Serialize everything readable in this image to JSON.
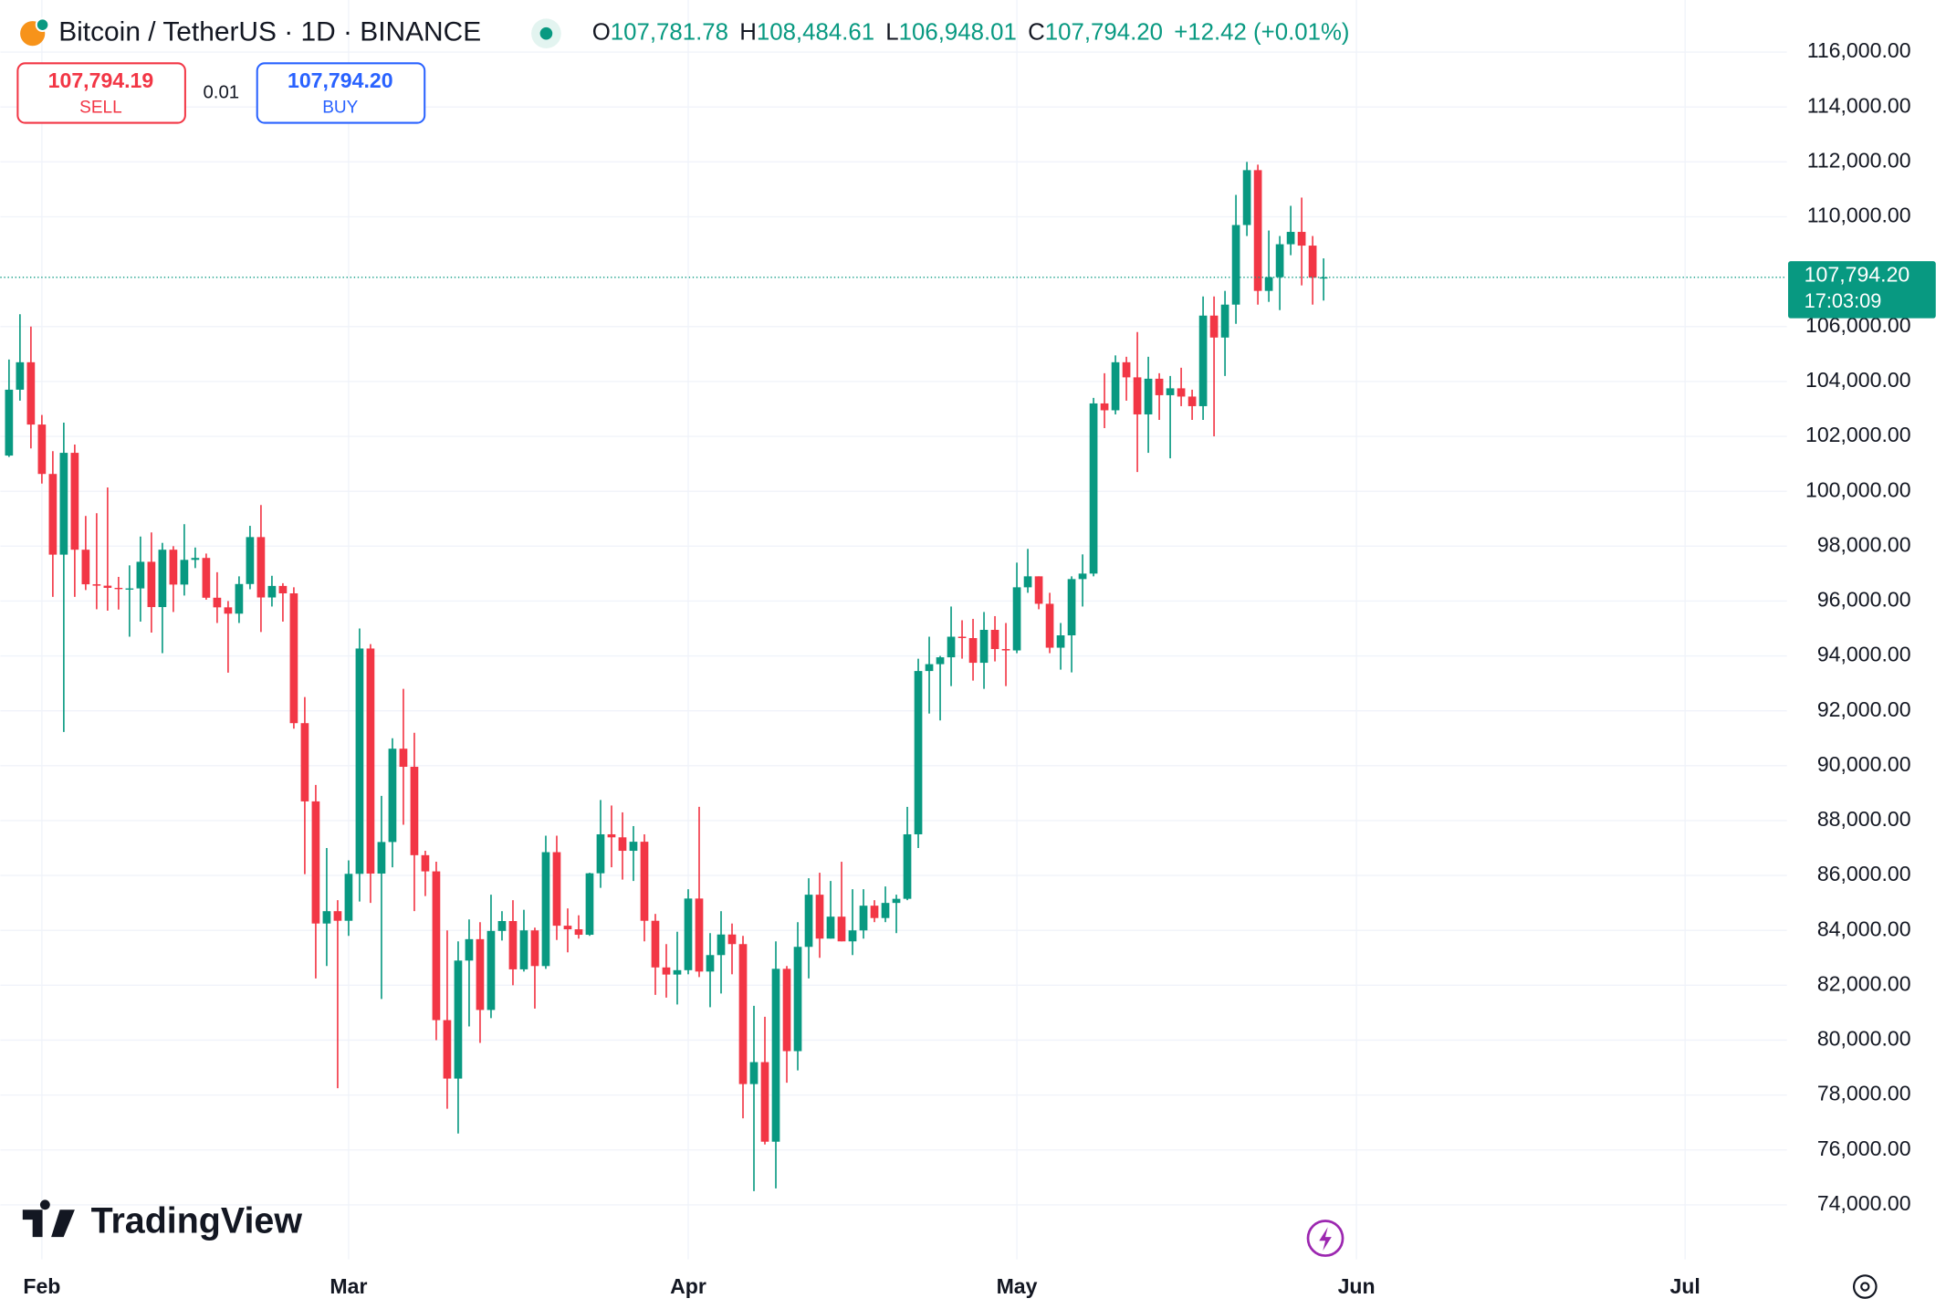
{
  "chart_data": {
    "type": "candlestick",
    "title": "Bitcoin / TetherUS · 1D · BINANCE",
    "ohlc_header": [
      {
        "key": "O",
        "value": "107,781.78"
      },
      {
        "key": "H",
        "value": "108,484.61"
      },
      {
        "key": "L",
        "value": "106,948.01"
      },
      {
        "key": "C",
        "value": "107,794.20"
      }
    ],
    "change": "+12.42 (+0.01%)",
    "sell": {
      "price": "107,794.19",
      "label": "SELL"
    },
    "spread": "0.01",
    "buy": {
      "price": "107,794.20",
      "label": "BUY"
    },
    "last_price_label": "107,794.20",
    "countdown": "17:03:09",
    "watermark": "TradingView",
    "up_color": "#089981",
    "down_color": "#f23645",
    "grid": true,
    "xlim": [
      -0.793,
      162.29
    ],
    "xticks": [
      {
        "value": 3,
        "label": "Feb"
      },
      {
        "value": 31,
        "label": "Mar"
      },
      {
        "value": 62,
        "label": "Apr"
      },
      {
        "value": 92,
        "label": "May"
      },
      {
        "value": 123,
        "label": "Jun"
      },
      {
        "value": 153,
        "label": "Jul"
      }
    ],
    "ylim": [
      72013,
      117899
    ],
    "yticks": [
      {
        "value": 74000,
        "label": "74,000.00"
      },
      {
        "value": 76000,
        "label": "76,000.00"
      },
      {
        "value": 78000,
        "label": "78,000.00"
      },
      {
        "value": 80000,
        "label": "80,000.00"
      },
      {
        "value": 82000,
        "label": "82,000.00"
      },
      {
        "value": 84000,
        "label": "84,000.00"
      },
      {
        "value": 86000,
        "label": "86,000.00"
      },
      {
        "value": 88000,
        "label": "88,000.00"
      },
      {
        "value": 90000,
        "label": "90,000.00"
      },
      {
        "value": 92000,
        "label": "92,000.00"
      },
      {
        "value": 94000,
        "label": "94,000.00"
      },
      {
        "value": 96000,
        "label": "96,000.00"
      },
      {
        "value": 98000,
        "label": "98,000.00"
      },
      {
        "value": 100000,
        "label": "100,000.00"
      },
      {
        "value": 102000,
        "label": "102,000.00"
      },
      {
        "value": 104000,
        "label": "104,000.00"
      },
      {
        "value": 106000,
        "label": "106,000.00"
      },
      {
        "value": 110000,
        "label": "110,000.00"
      },
      {
        "value": 112000,
        "label": "112,000.00"
      },
      {
        "value": 114000,
        "label": "114,000.00"
      },
      {
        "value": 116000,
        "label": "116,000.00"
      }
    ],
    "open": [
      101300,
      103700,
      104700,
      102430,
      100630,
      97690,
      101400,
      97870,
      96610,
      96560,
      96480,
      96460,
      96460,
      97430,
      95780,
      97870,
      96600,
      97500,
      97570,
      96120,
      95770,
      95540,
      96620,
      98330,
      96130,
      96550,
      96280,
      91550,
      88700,
      84250,
      84700,
      84350,
      86060,
      94270,
      86070,
      87220,
      90620,
      89960,
      86740,
      86150,
      80730,
      78600,
      82900,
      83680,
      81100,
      83980,
      84340,
      82580,
      84000,
      82700,
      86850,
      84170,
      84040,
      83840,
      86080,
      87500,
      87390,
      86900,
      87230,
      84350,
      82650,
      82390,
      82550,
      85160,
      82500,
      83100,
      83850,
      83500,
      78400,
      79200,
      76300,
      82600,
      79600,
      83400,
      85300,
      83700,
      84500,
      83600,
      84000,
      84900,
      84450,
      85000,
      85150,
      87500,
      93450,
      93700,
      93950,
      94700,
      94650,
      93750,
      94950,
      94250,
      94200,
      96500,
      96900,
      95900,
      94300,
      94750,
      96800,
      97000,
      103200,
      102950,
      104700,
      104150,
      102800,
      104100,
      103500,
      103750,
      103450,
      103100,
      106400,
      105600,
      106800,
      109700,
      111700,
      107300,
      107800,
      109000,
      109450,
      108950,
      107781.78
    ],
    "high": [
      104800,
      106450,
      106000,
      102780,
      101460,
      102500,
      101700,
      99100,
      99200,
      100140,
      96880,
      97300,
      98350,
      98500,
      98120,
      98000,
      98800,
      97950,
      97730,
      97050,
      96000,
      96900,
      98740,
      99500,
      96920,
      96650,
      96500,
      92500,
      89300,
      87000,
      85100,
      86550,
      95000,
      94430,
      88900,
      91000,
      92800,
      91200,
      86900,
      86500,
      84000,
      83600,
      84400,
      84300,
      85300,
      84700,
      85100,
      84750,
      84100,
      87450,
      87450,
      84800,
      84550,
      86100,
      88750,
      88550,
      88300,
      87800,
      87500,
      84600,
      83500,
      83950,
      85500,
      88500,
      83900,
      84700,
      84250,
      83800,
      81250,
      80850,
      83600,
      82700,
      84300,
      85900,
      86100,
      85800,
      86500,
      85500,
      85500,
      85100,
      85600,
      85300,
      88500,
      93900,
      94700,
      94000,
      95800,
      95300,
      95350,
      95600,
      95450,
      95200,
      97400,
      97900,
      96900,
      96300,
      95200,
      96900,
      97700,
      103400,
      104300,
      104950,
      104900,
      105800,
      104900,
      104300,
      104200,
      104500,
      103700,
      107100,
      107100,
      107300,
      110800,
      112000,
      111900,
      109500,
      109300,
      110400,
      110700,
      109300,
      108484.61
    ],
    "low": [
      101250,
      103300,
      101560,
      100280,
      96150,
      91230,
      96150,
      96400,
      95700,
      95650,
      95690,
      94700,
      95250,
      94850,
      94100,
      95600,
      96200,
      97200,
      96050,
      95200,
      93390,
      95200,
      96430,
      94870,
      95800,
      95250,
      91350,
      86050,
      82250,
      82700,
      78250,
      83800,
      85050,
      85000,
      81500,
      86300,
      87850,
      84700,
      85250,
      80000,
      77500,
      76600,
      80500,
      79900,
      80800,
      83630,
      82000,
      82500,
      81150,
      82600,
      83650,
      83200,
      83700,
      83800,
      85550,
      86300,
      85850,
      85800,
      83600,
      81650,
      81550,
      81300,
      82400,
      82300,
      81200,
      81700,
      82400,
      77150,
      74500,
      76200,
      74600,
      78450,
      78900,
      82250,
      83000,
      83700,
      83600,
      83100,
      83700,
      84300,
      84300,
      83900,
      85100,
      87000,
      91900,
      91650,
      92900,
      93900,
      93100,
      92800,
      93800,
      92900,
      94100,
      96300,
      95700,
      94100,
      93500,
      93400,
      95800,
      96900,
      102300,
      102800,
      103300,
      100700,
      101400,
      102600,
      101200,
      103100,
      102600,
      102600,
      102000,
      104200,
      106100,
      109300,
      106800,
      106900,
      106600,
      108600,
      107500,
      106800,
      106948.01
    ],
    "close": [
      103700,
      104700,
      102430,
      100630,
      97690,
      101400,
      97870,
      96610,
      96560,
      96480,
      96460,
      96460,
      97430,
      95780,
      97870,
      96600,
      97500,
      97570,
      96120,
      95770,
      95540,
      96620,
      98330,
      96130,
      96550,
      96280,
      91550,
      88700,
      84250,
      84700,
      84350,
      86060,
      94270,
      86070,
      87220,
      90620,
      89960,
      86740,
      86150,
      80730,
      78600,
      82900,
      83680,
      81100,
      83980,
      84340,
      82580,
      84000,
      82700,
      86850,
      84170,
      84040,
      83840,
      86080,
      87500,
      87390,
      86900,
      87230,
      84350,
      82650,
      82390,
      82550,
      85160,
      82500,
      83100,
      83850,
      83500,
      78400,
      79200,
      76300,
      82600,
      79600,
      83400,
      85300,
      83700,
      84500,
      83600,
      84000,
      84900,
      84450,
      85000,
      85150,
      87500,
      93450,
      93700,
      93950,
      94700,
      94650,
      93750,
      94950,
      94250,
      94200,
      96500,
      96900,
      95900,
      94300,
      94750,
      96800,
      97000,
      103200,
      102950,
      104700,
      104150,
      102800,
      104100,
      103500,
      103750,
      103450,
      103100,
      106400,
      105600,
      106800,
      109700,
      111700,
      107300,
      107800,
      109000,
      109450,
      108950,
      107781.78,
      107794.2
    ]
  }
}
